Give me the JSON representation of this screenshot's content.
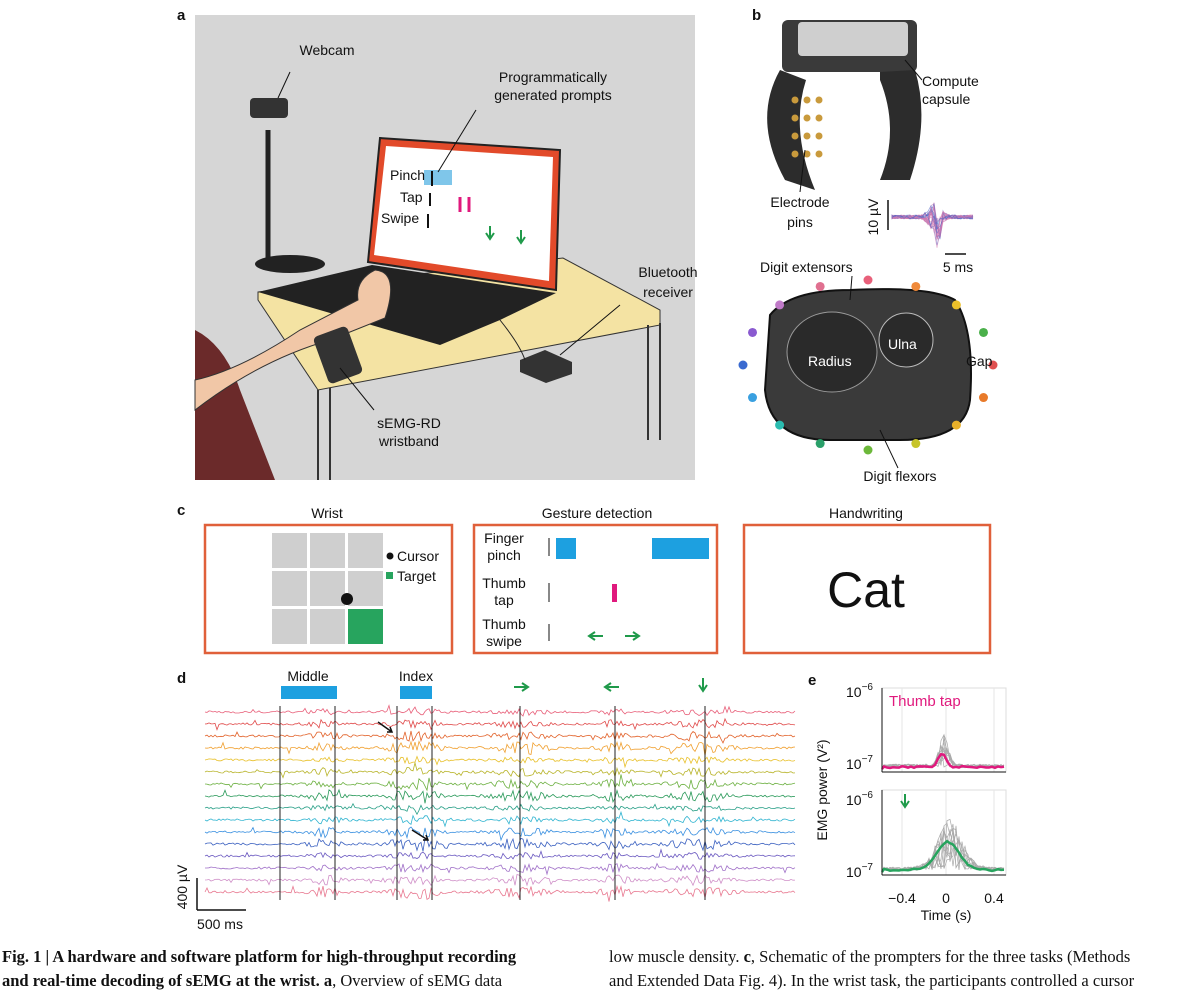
{
  "figure": {
    "a": {
      "label": "a",
      "webcam": "Webcam",
      "prompts": [
        "Programmatically",
        "generated prompts"
      ],
      "screen": [
        "Pinch",
        "Tap",
        "Swipe"
      ],
      "receiver": [
        "Bluetooth",
        "receiver"
      ],
      "wristband": [
        "sEMG-RD",
        "wristband"
      ]
    },
    "b": {
      "label": "b",
      "capsule": [
        "Compute",
        "capsule"
      ],
      "pins": [
        "Electrode",
        "pins"
      ],
      "scale_v": "10 µV",
      "scale_t": "5 ms",
      "extensors": "Digit extensors",
      "radius": "Radius",
      "ulna": "Ulna",
      "gap": "Gap",
      "flexors": "Digit flexors"
    },
    "c": {
      "label": "c",
      "wrist": {
        "title": "Wrist",
        "legend": [
          "Cursor",
          "Target"
        ]
      },
      "gesture": {
        "title": "Gesture detection",
        "rows": [
          [
            "Finger",
            "pinch"
          ],
          [
            "Thumb",
            "tap"
          ],
          [
            "Thumb",
            "swipe"
          ]
        ]
      },
      "handwriting": {
        "title": "Handwriting",
        "word": "Cat"
      }
    },
    "d": {
      "label": "d",
      "prompts": [
        "Middle",
        "Index"
      ],
      "scale_v": "400 µV",
      "scale_t": "500 ms"
    },
    "e": {
      "label": "e",
      "yticks": [
        {
          "base": "10",
          "exp": "−6"
        },
        {
          "base": "10",
          "exp": "−7"
        },
        {
          "base": "10",
          "exp": "−6"
        },
        {
          "base": "10",
          "exp": "−7"
        }
      ],
      "annotation": "Thumb tap",
      "ylabel": "EMG power (V²)",
      "xticks": [
        "−0.4",
        "0",
        "0.4"
      ],
      "xlabel": "Time (s)"
    }
  },
  "caption": {
    "left": [
      {
        "bold": "Fig. 1 | A hardware and software platform for high-throughput recording"
      },
      {
        "bold": "and real-time decoding of sEMG at the wrist. ",
        "panel": "a",
        "text": ", Overview of sEMG data"
      }
    ],
    "right": [
      {
        "text": "low muscle density. ",
        "panel": "c",
        "rest": ", Schematic of the prompters for the three tasks (Methods"
      },
      {
        "text": "and Extended Data Fig. 4). In the wrist task, the participants controlled a cursor"
      }
    ]
  }
}
